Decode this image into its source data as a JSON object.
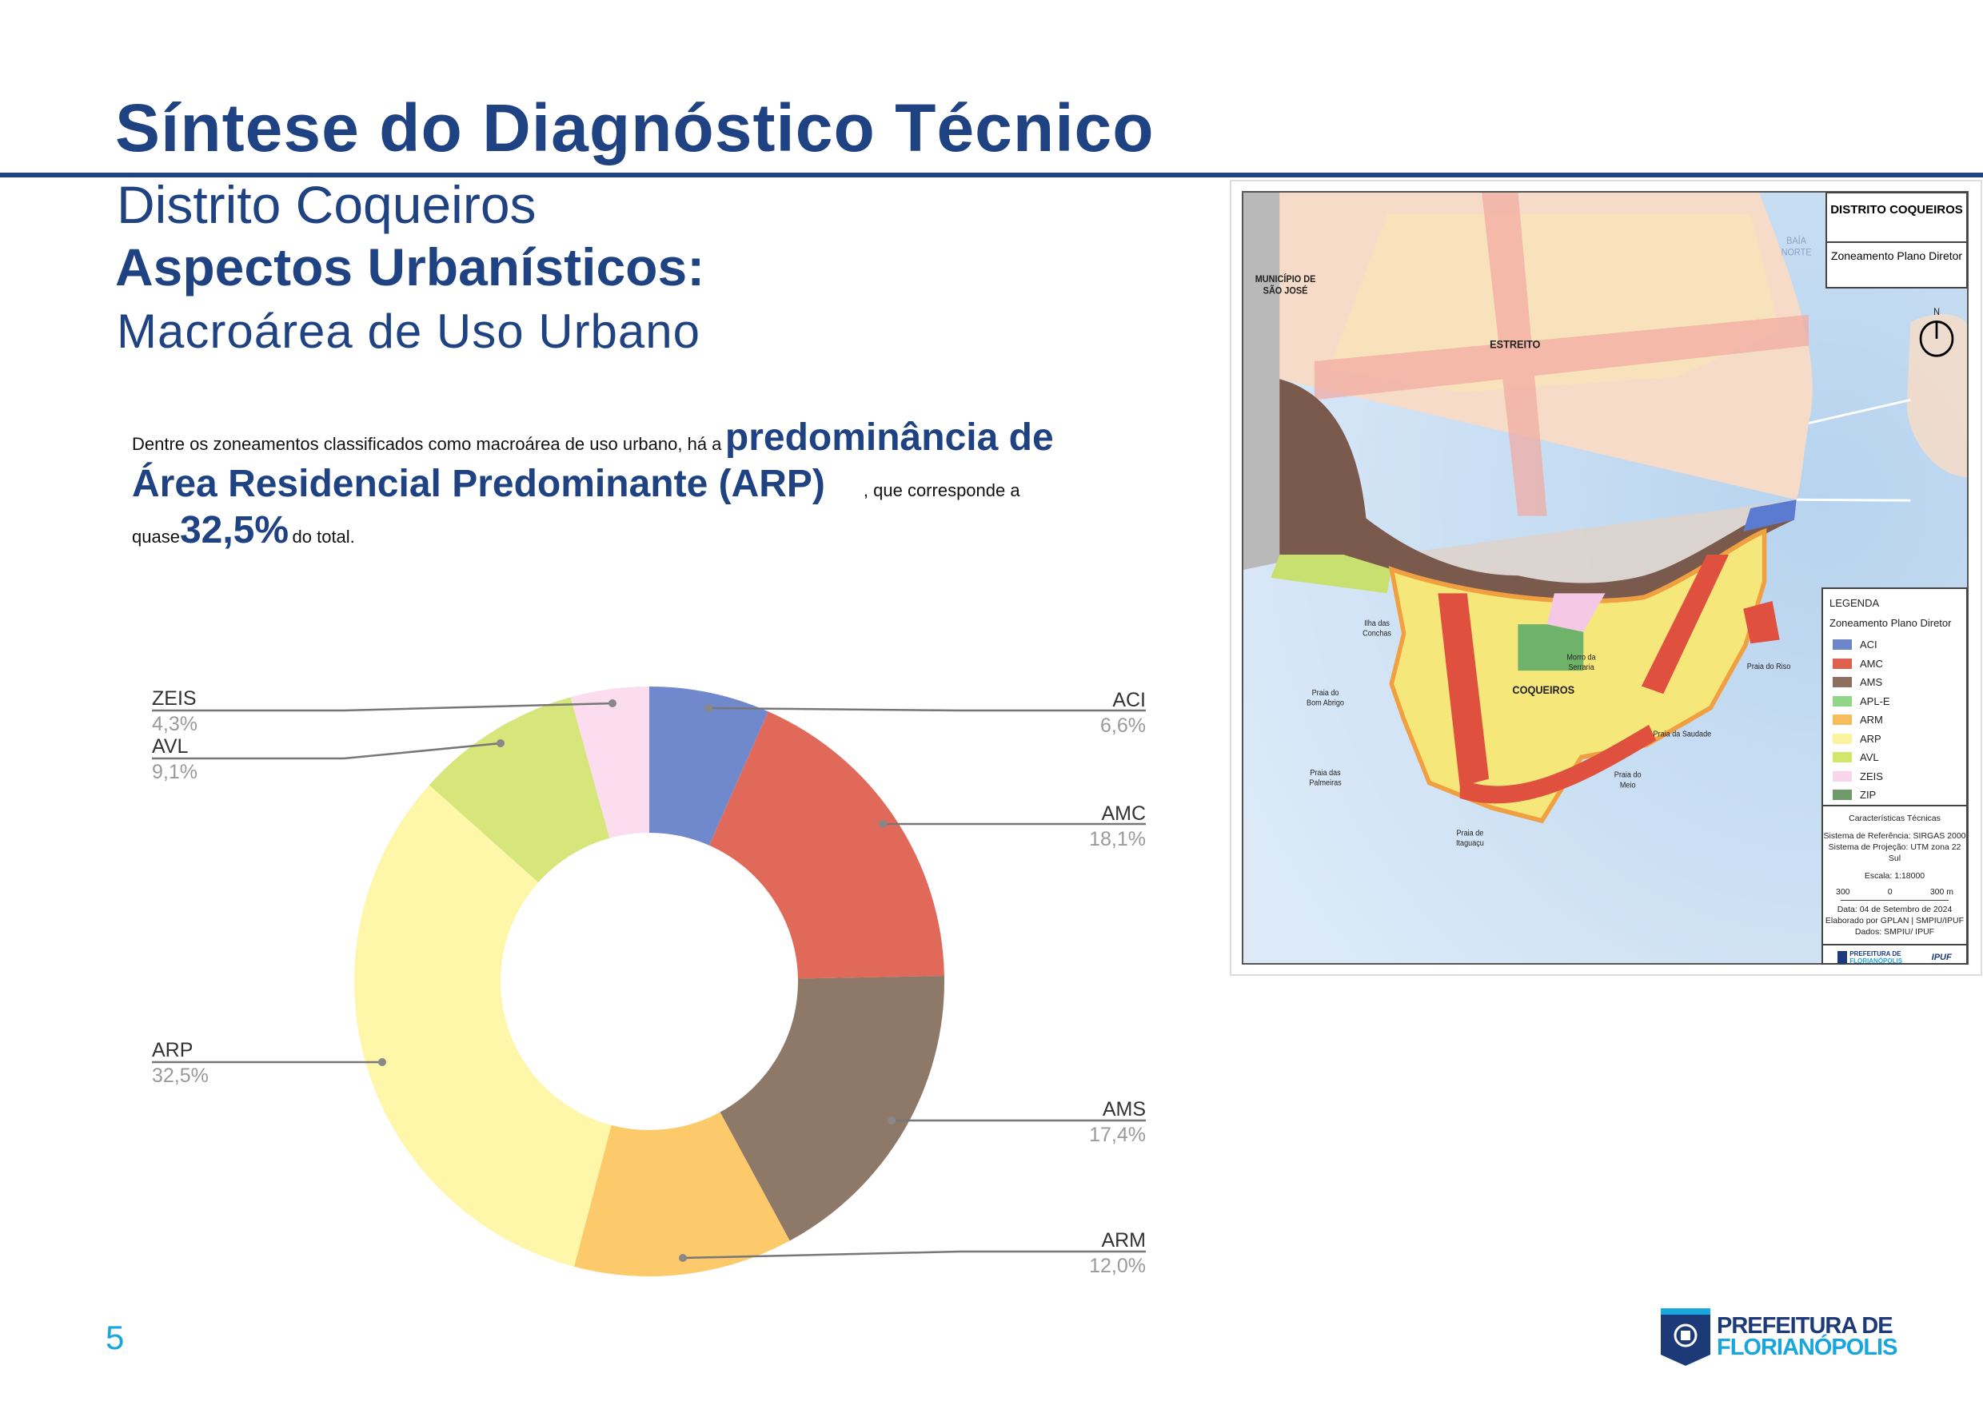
{
  "header": {
    "title": "Síntese do Diagnóstico Técnico",
    "district": "Distrito Coqueiros",
    "section": "Aspectos Urbanísticos:",
    "subsection": "Macroárea de Uso Urbano"
  },
  "paragraph": {
    "p1": "Dentre os zoneamentos classificados como macroárea de uso urbano, há a",
    "p2": "predominância de",
    "p3": "Área Residencial Predominante (ARP)",
    "p4": ", que corresponde a",
    "p5": "quase",
    "p6": "32,5%",
    "p7": "do total."
  },
  "chart_data": {
    "type": "pie",
    "donut": true,
    "categories": [
      "ACI",
      "AMC",
      "AMS",
      "ARM",
      "ARP",
      "AVL",
      "ZEIS"
    ],
    "values": [
      6.6,
      18.1,
      17.4,
      12.0,
      32.5,
      9.1,
      4.3
    ],
    "value_labels": [
      "6,6%",
      "18,1%",
      "17,4%",
      "12,0%",
      "32,5%",
      "9,1%",
      "4,3%"
    ],
    "colors": [
      "#7088cc",
      "#e0695a",
      "#8e7868",
      "#fcca6a",
      "#fef6a8",
      "#d6e67a",
      "#fcdcef"
    ],
    "legend": "labels with leader lines"
  },
  "map": {
    "title": "DISTRITO COQUEIROS",
    "subtitle": "Zoneamento Plano Diretor",
    "places": {
      "sj1": "MUNICÍPIO DE",
      "sj2": "SÃO JOSÉ",
      "estreito": "ESTREITO",
      "baia1": "BAÍA",
      "baia2": "NORTE",
      "ilha1": "Ilha das",
      "ilha2": "Conchas",
      "bom1": "Praia do",
      "bom2": "Bom Abrigo",
      "palm1": "Praia das",
      "palm2": "Palmeiras",
      "itag1": "Praia de",
      "itag2": "Itaguaçu",
      "coqueiros": "COQUEIROS",
      "morro1": "Morro da",
      "morro2": "Serraria",
      "saudade": "Praia da Saudade",
      "meio1": "Praia do",
      "meio2": "Meio",
      "riso": "Praia do Riso",
      "north": "N"
    },
    "legend": {
      "title": "LEGENDA",
      "subtitle": "Zoneamento Plano Diretor",
      "items": [
        {
          "label": "ACI",
          "color": "#6d86c9"
        },
        {
          "label": "AMC",
          "color": "#e0604f"
        },
        {
          "label": "AMS",
          "color": "#8b6f61"
        },
        {
          "label": "APL-E",
          "color": "#8fd68a"
        },
        {
          "label": "ARM",
          "color": "#f7bd5a"
        },
        {
          "label": "ARP",
          "color": "#fdf2a0"
        },
        {
          "label": "AVL",
          "color": "#d2e66e"
        },
        {
          "label": "ZEIS",
          "color": "#f9d5ec"
        },
        {
          "label": "ZIP",
          "color": "#6f9b6a"
        }
      ]
    },
    "tech": {
      "title": "Características Técnicas",
      "ref": "Sistema de Referência: SIRGAS 2000",
      "proj": "Sistema de Projeção: UTM zona 22 Sul",
      "scale": "Escala: 1:18000",
      "s1": "300",
      "s2": "0",
      "s3": "300 m",
      "date": "Data: 04 de Setembro de 2024",
      "made": "Elaborado por GPLAN | SMPIU/IPUF",
      "data": "Dados: SMPIU/ IPUF",
      "logo1": "PREFEITURA DE",
      "logo2": "FLORIANÓPOLIS",
      "logo3": "IPUF"
    }
  },
  "footer": {
    "page": "5",
    "logo_line1": "PREFEITURA DE",
    "logo_line2": "FLORIANÓPOLIS"
  }
}
